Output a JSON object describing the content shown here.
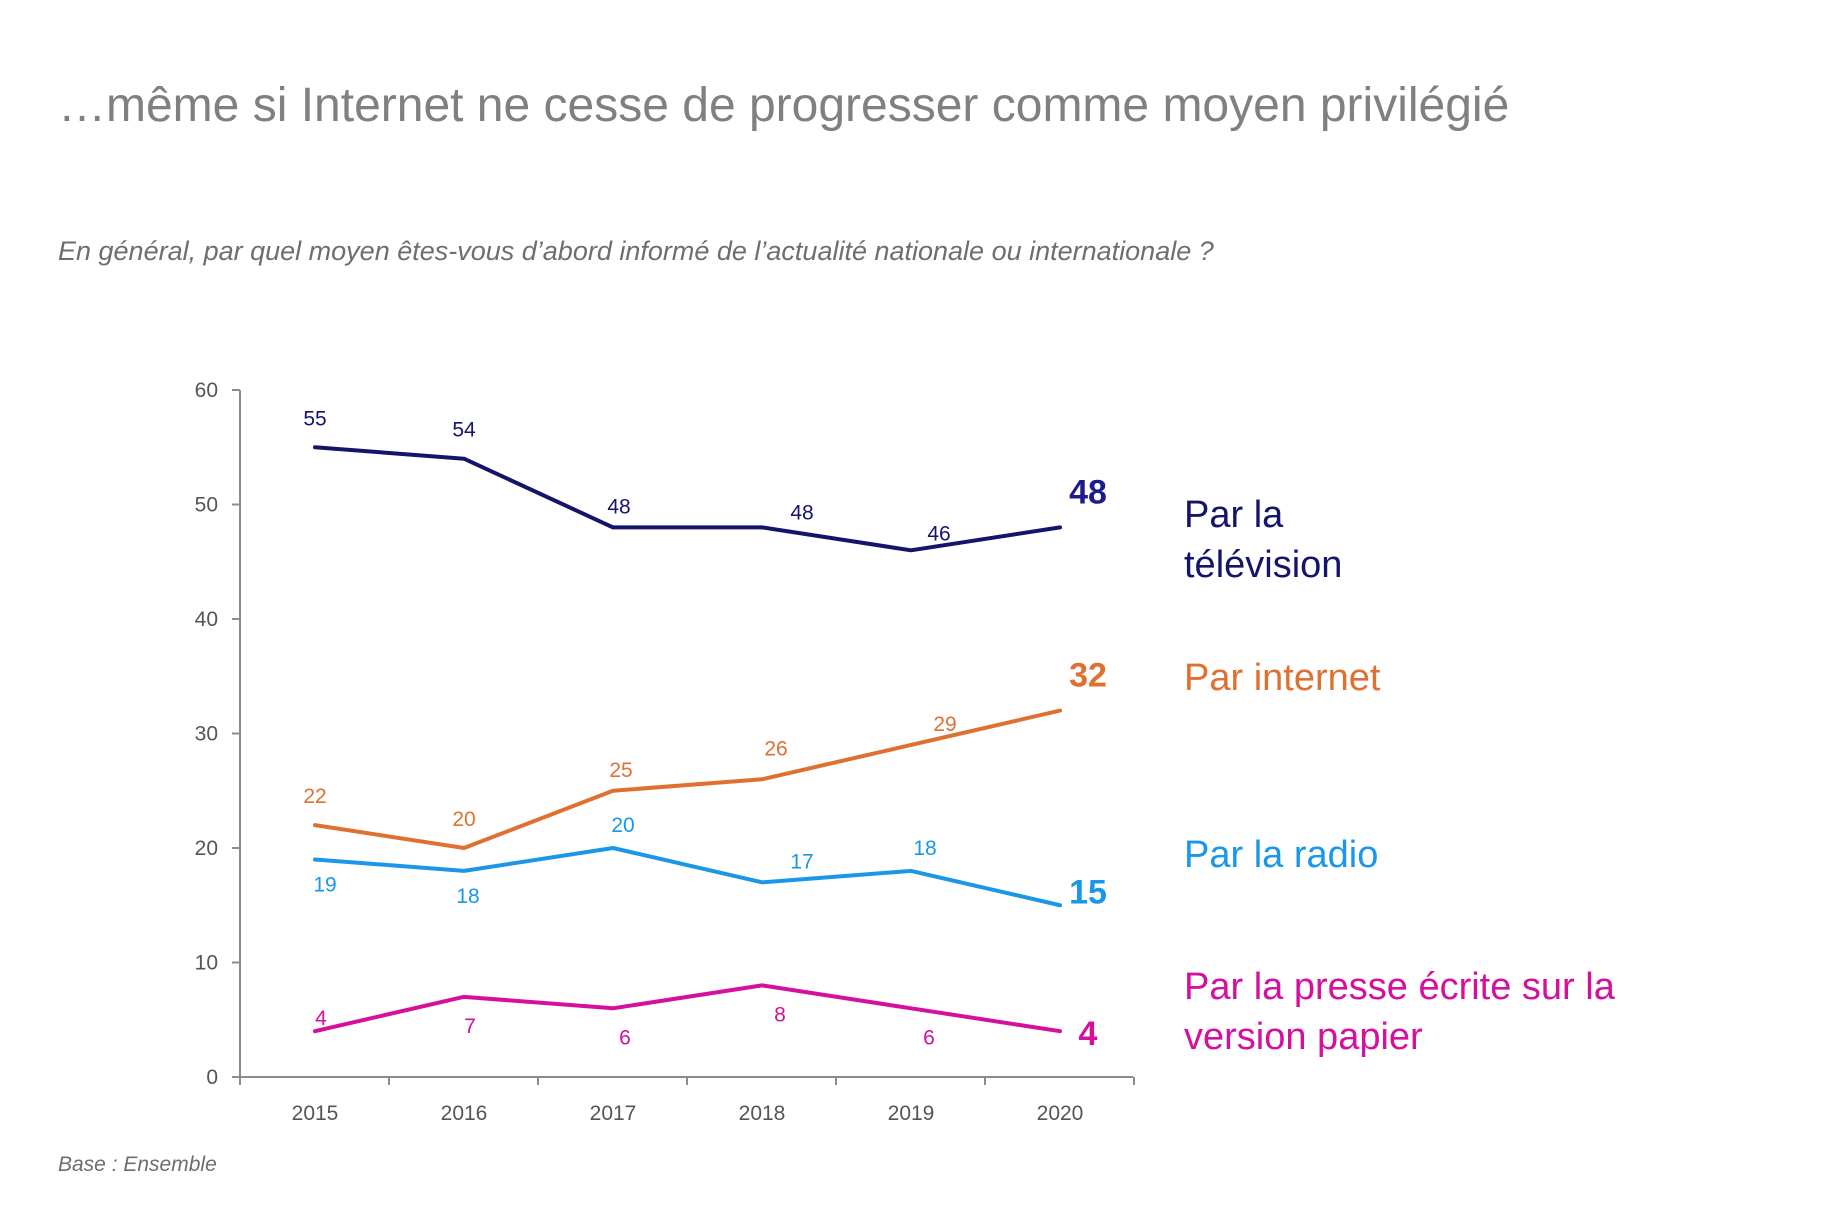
{
  "title": "…même si Internet ne cesse de progresser comme moyen privilégié",
  "question": "En général, par quel moyen êtes-vous d’abord informé de l’actualité nationale ou internationale ?",
  "base": "Base : Ensemble",
  "chart_data": {
    "type": "line",
    "x": [
      "2015",
      "2016",
      "2017",
      "2018",
      "2019",
      "2020"
    ],
    "ylim": [
      0,
      60
    ],
    "yticks": [
      0,
      10,
      20,
      30,
      40,
      50,
      60
    ],
    "grid": false,
    "legend_placement": "right",
    "series": [
      {
        "name": "Par la télévision",
        "color": "#14146b",
        "values": [
          55,
          54,
          48,
          48,
          46,
          48
        ],
        "end_label": "48",
        "end_color": "#1c1c8c"
      },
      {
        "name": "Par internet",
        "color": "#e07030",
        "values": [
          22,
          20,
          25,
          26,
          29,
          32
        ],
        "end_label": "32",
        "end_color": "#e07030"
      },
      {
        "name": "Par la radio",
        "color": "#1a97e8",
        "values": [
          19,
          18,
          20,
          17,
          18,
          15
        ],
        "end_label": "15",
        "end_color": "#1a97e8"
      },
      {
        "name": "Par la presse écrite sur la version papier",
        "color": "#d4109c",
        "values": [
          4,
          7,
          6,
          8,
          6,
          4
        ],
        "end_label": "4",
        "end_color": "#d4109c"
      }
    ]
  }
}
